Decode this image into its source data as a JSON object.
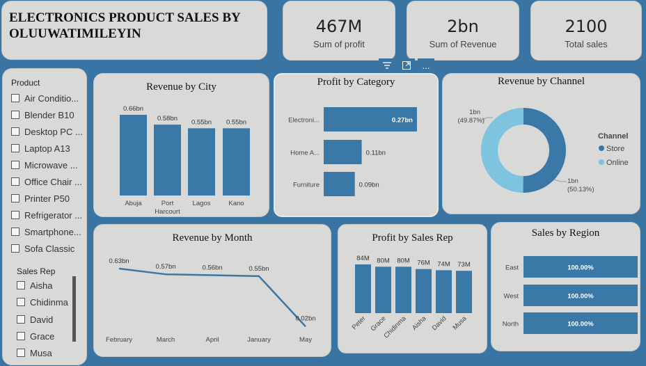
{
  "title": "ELECTRONICS PRODUCT SALES BY OLUUWATIMILEYIN",
  "kpis": [
    {
      "value": "467M",
      "label": "Sum of profit"
    },
    {
      "value": "2bn",
      "label": "Sum of Revenue"
    },
    {
      "value": "2100",
      "label": "Total sales"
    }
  ],
  "slicer": {
    "product_header": "Product",
    "products": [
      "Air Conditio...",
      "Blender B10",
      "Desktop PC ...",
      "Laptop A13",
      "Microwave ...",
      "Office Chair ...",
      "Printer P50",
      "Refrigerator ...",
      "Smartphone...",
      "Sofa Classic"
    ],
    "rep_header": "Sales Rep",
    "reps": [
      "Aisha",
      "Chidinma",
      "David",
      "Grace",
      "Musa"
    ]
  },
  "toolbar": {
    "filter_icon": "filter-icon",
    "focus_icon": "focus-mode-icon",
    "more_label": "..."
  },
  "colors": {
    "bar": "#3a78a8",
    "light": "#7fc4de",
    "panel": "#d9dad7",
    "background": "#3a74a2"
  },
  "chart_data": [
    {
      "type": "bar",
      "title": "Revenue by City",
      "categories": [
        "Abuja",
        "Port Harcourt",
        "Lagos",
        "Kano"
      ],
      "category_lines": [
        [
          "Abuja"
        ],
        [
          "Port",
          "Harcourt"
        ],
        [
          "Lagos"
        ],
        [
          "Kano"
        ]
      ],
      "values": [
        0.66,
        0.58,
        0.55,
        0.55
      ],
      "labels": [
        "0.66bn",
        "0.58bn",
        "0.55bn",
        "0.55bn"
      ]
    },
    {
      "type": "bar",
      "orientation": "horizontal",
      "title": "Profit by Category",
      "categories": [
        "Electroni...",
        "Home A...",
        "Furniture"
      ],
      "values": [
        0.27,
        0.11,
        0.09
      ],
      "labels": [
        "0.27bn",
        "0.11bn",
        "0.09bn"
      ]
    },
    {
      "type": "pie",
      "donut": true,
      "title": "Revenue by Channel",
      "legend_title": "Channel",
      "slices": [
        {
          "name": "Store",
          "value": 1,
          "label": "1bn",
          "pct": "(50.13%)",
          "percent": 50.13
        },
        {
          "name": "Online",
          "value": 1,
          "label": "1bn",
          "pct": "(49.87%)",
          "percent": 49.87
        }
      ]
    },
    {
      "type": "line",
      "title": "Revenue by Month",
      "categories": [
        "February",
        "March",
        "April",
        "January",
        "May"
      ],
      "values": [
        0.63,
        0.57,
        0.56,
        0.55,
        0.02
      ],
      "labels": [
        "0.63bn",
        "0.57bn",
        "0.56bn",
        "0.55bn",
        "0.02bn"
      ]
    },
    {
      "type": "bar",
      "title": "Profit by Sales Rep",
      "categories": [
        "Peter",
        "Grace",
        "Chidinma",
        "Aisha",
        "David",
        "Musa"
      ],
      "values": [
        84,
        80,
        80,
        76,
        74,
        73
      ],
      "labels": [
        "84M",
        "80M",
        "80M",
        "76M",
        "74M",
        "73M"
      ]
    },
    {
      "type": "bar",
      "orientation": "horizontal",
      "title": "Sales by Region",
      "categories": [
        "East",
        "West",
        "North"
      ],
      "values": [
        100,
        100,
        100
      ],
      "labels": [
        "100.00%",
        "100.00%",
        "100.00%"
      ]
    }
  ]
}
